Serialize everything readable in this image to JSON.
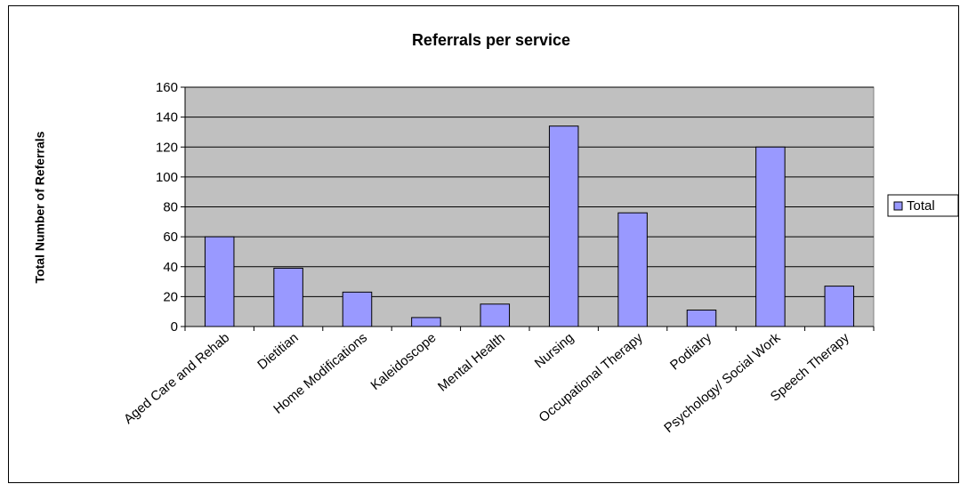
{
  "chart_data": {
    "type": "bar",
    "title": "Referrals per service",
    "y_label": "Total Number of Referrals",
    "categories": [
      "Aged Care and Rehab",
      "Dietitian",
      "Home Modifications",
      "Kaleidoscope",
      "Mental Health",
      "Nursing",
      "Occupational Therapy",
      "Podiatry",
      "Psychology/ Social Work",
      "Speech Therapy"
    ],
    "series": [
      {
        "name": "Total",
        "color": "#9999ff",
        "values": [
          60,
          39,
          23,
          6,
          15,
          134,
          76,
          11,
          120,
          27
        ]
      }
    ],
    "ylim": [
      0,
      160
    ],
    "yticks": [
      0,
      20,
      40,
      60,
      80,
      100,
      120,
      140,
      160
    ],
    "grid": true,
    "legend": "right"
  }
}
